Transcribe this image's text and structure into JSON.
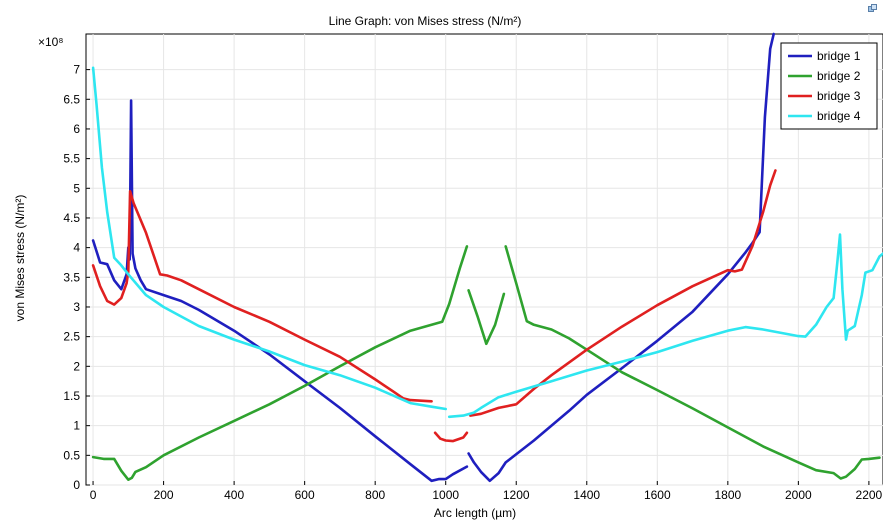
{
  "chart_data": {
    "type": "line",
    "title": "Line Graph: von Mises stress (N/m²)",
    "xlabel": "Arc length (µm)",
    "ylabel": "von Mises stress (N/m²)",
    "y_multiplier": "×10⁸",
    "xlim": [
      -20,
      2240
    ],
    "ylim": [
      0,
      7.6
    ],
    "x_ticks": [
      0,
      200,
      400,
      600,
      800,
      1000,
      1200,
      1400,
      1600,
      1800,
      2000,
      2200
    ],
    "y_ticks": [
      0,
      0.5,
      1,
      1.5,
      2,
      2.5,
      3,
      3.5,
      4,
      4.5,
      5,
      5.5,
      6,
      6.5,
      7
    ],
    "x_tick_labels": [
      "0",
      "200",
      "400",
      "600",
      "800",
      "1000",
      "1200",
      "1400",
      "1600",
      "1800",
      "2000",
      "2200"
    ],
    "y_tick_labels": [
      "0",
      "0.5",
      "1",
      "1.5",
      "2",
      "2.5",
      "3",
      "3.5",
      "4",
      "4.5",
      "5",
      "5.5",
      "6",
      "6.5",
      "7"
    ],
    "legend_position": "top-right",
    "grid": true,
    "series": [
      {
        "name": "bridge 1",
        "color": "#1f1fbf",
        "segments": [
          [
            [
              0,
              4.12
            ],
            [
              20,
              3.75
            ],
            [
              40,
              3.72
            ],
            [
              60,
              3.45
            ],
            [
              80,
              3.3
            ],
            [
              95,
              3.55
            ],
            [
              100,
              4.0
            ],
            [
              104,
              3.8
            ],
            [
              108,
              6.48
            ],
            [
              112,
              3.9
            ],
            [
              120,
              3.65
            ],
            [
              135,
              3.45
            ],
            [
              150,
              3.3
            ],
            [
              200,
              3.2
            ],
            [
              250,
              3.1
            ],
            [
              300,
              2.95
            ],
            [
              400,
              2.6
            ],
            [
              500,
              2.2
            ],
            [
              600,
              1.75
            ],
            [
              700,
              1.3
            ],
            [
              800,
              0.82
            ],
            [
              900,
              0.35
            ],
            [
              960,
              0.07
            ],
            [
              980,
              0.1
            ],
            [
              1000,
              0.1
            ],
            [
              1020,
              0.18
            ],
            [
              1060,
              0.31
            ]
          ],
          [
            [
              1065,
              0.53
            ],
            [
              1080,
              0.38
            ],
            [
              1100,
              0.22
            ],
            [
              1125,
              0.07
            ],
            [
              1150,
              0.2
            ],
            [
              1170,
              0.38
            ],
            [
              1250,
              0.75
            ],
            [
              1350,
              1.25
            ],
            [
              1400,
              1.52
            ],
            [
              1500,
              1.97
            ],
            [
              1600,
              2.43
            ],
            [
              1700,
              2.92
            ],
            [
              1800,
              3.55
            ],
            [
              1850,
              3.92
            ],
            [
              1870,
              4.08
            ],
            [
              1890,
              4.26
            ],
            [
              1905,
              6.2
            ],
            [
              1920,
              7.35
            ],
            [
              1930,
              7.6
            ]
          ]
        ]
      },
      {
        "name": "bridge 2",
        "color": "#2fa22f",
        "segments": [
          [
            [
              0,
              0.47
            ],
            [
              30,
              0.44
            ],
            [
              60,
              0.44
            ],
            [
              80,
              0.24
            ],
            [
              100,
              0.09
            ],
            [
              110,
              0.12
            ],
            [
              120,
              0.22
            ],
            [
              150,
              0.3
            ],
            [
              200,
              0.5
            ],
            [
              300,
              0.8
            ],
            [
              400,
              1.08
            ],
            [
              500,
              1.36
            ],
            [
              600,
              1.67
            ],
            [
              700,
              2.0
            ],
            [
              800,
              2.32
            ],
            [
              900,
              2.6
            ],
            [
              960,
              2.7
            ],
            [
              990,
              2.75
            ],
            [
              1010,
              3.05
            ],
            [
              1040,
              3.65
            ],
            [
              1060,
              4.02
            ]
          ],
          [
            [
              1065,
              3.28
            ],
            [
              1090,
              2.85
            ],
            [
              1115,
              2.38
            ],
            [
              1140,
              2.7
            ],
            [
              1165,
              3.22
            ]
          ],
          [
            [
              1170,
              4.02
            ],
            [
              1200,
              3.4
            ],
            [
              1230,
              2.76
            ],
            [
              1250,
              2.7
            ],
            [
              1300,
              2.62
            ],
            [
              1350,
              2.47
            ],
            [
              1400,
              2.28
            ],
            [
              1500,
              1.9
            ],
            [
              1600,
              1.6
            ],
            [
              1700,
              1.29
            ],
            [
              1800,
              0.97
            ],
            [
              1900,
              0.65
            ],
            [
              2000,
              0.38
            ],
            [
              2050,
              0.25
            ],
            [
              2100,
              0.2
            ],
            [
              2120,
              0.11
            ],
            [
              2135,
              0.14
            ],
            [
              2160,
              0.27
            ],
            [
              2180,
              0.43
            ],
            [
              2200,
              0.44
            ],
            [
              2230,
              0.46
            ]
          ]
        ]
      },
      {
        "name": "bridge 3",
        "color": "#e02020",
        "segments": [
          [
            [
              0,
              3.7
            ],
            [
              20,
              3.35
            ],
            [
              40,
              3.1
            ],
            [
              60,
              3.04
            ],
            [
              80,
              3.15
            ],
            [
              95,
              3.4
            ],
            [
              100,
              3.6
            ],
            [
              105,
              4.95
            ],
            [
              115,
              4.75
            ],
            [
              150,
              4.25
            ],
            [
              190,
              3.55
            ],
            [
              210,
              3.53
            ],
            [
              250,
              3.45
            ],
            [
              300,
              3.3
            ],
            [
              400,
              3.0
            ],
            [
              500,
              2.75
            ],
            [
              600,
              2.45
            ],
            [
              700,
              2.16
            ],
            [
              800,
              1.78
            ],
            [
              850,
              1.58
            ],
            [
              880,
              1.46
            ],
            [
              900,
              1.43
            ],
            [
              960,
              1.41
            ]
          ],
          [
            [
              970,
              0.88
            ],
            [
              985,
              0.78
            ],
            [
              1000,
              0.75
            ],
            [
              1020,
              0.74
            ],
            [
              1050,
              0.8
            ],
            [
              1060,
              0.88
            ]
          ],
          [
            [
              1070,
              1.17
            ],
            [
              1100,
              1.2
            ],
            [
              1150,
              1.3
            ],
            [
              1200,
              1.36
            ],
            [
              1250,
              1.62
            ],
            [
              1300,
              1.85
            ],
            [
              1400,
              2.28
            ],
            [
              1500,
              2.67
            ],
            [
              1600,
              3.03
            ],
            [
              1700,
              3.35
            ],
            [
              1800,
              3.62
            ],
            [
              1820,
              3.6
            ],
            [
              1840,
              3.63
            ],
            [
              1870,
              4.03
            ],
            [
              1900,
              4.6
            ],
            [
              1920,
              5.05
            ],
            [
              1935,
              5.3
            ]
          ]
        ]
      },
      {
        "name": "bridge 4",
        "color": "#2ee6f0",
        "segments": [
          [
            [
              0,
              7.03
            ],
            [
              10,
              6.4
            ],
            [
              25,
              5.35
            ],
            [
              40,
              4.6
            ],
            [
              60,
              3.83
            ],
            [
              80,
              3.7
            ],
            [
              100,
              3.55
            ],
            [
              150,
              3.2
            ],
            [
              200,
              3.0
            ],
            [
              300,
              2.68
            ],
            [
              400,
              2.45
            ],
            [
              500,
              2.25
            ],
            [
              600,
              2.02
            ],
            [
              700,
              1.85
            ],
            [
              800,
              1.64
            ],
            [
              900,
              1.38
            ],
            [
              960,
              1.32
            ],
            [
              1000,
              1.28
            ]
          ],
          [
            [
              1010,
              1.15
            ],
            [
              1050,
              1.17
            ],
            [
              1080,
              1.22
            ],
            [
              1100,
              1.3
            ],
            [
              1150,
              1.48
            ],
            [
              1200,
              1.57
            ],
            [
              1300,
              1.75
            ],
            [
              1400,
              1.93
            ],
            [
              1500,
              2.08
            ],
            [
              1600,
              2.24
            ],
            [
              1700,
              2.43
            ],
            [
              1800,
              2.6
            ],
            [
              1850,
              2.66
            ],
            [
              1900,
              2.62
            ],
            [
              2000,
              2.51
            ],
            [
              2020,
              2.5
            ],
            [
              2050,
              2.7
            ],
            [
              2080,
              3.0
            ],
            [
              2100,
              3.15
            ],
            [
              2110,
              3.73
            ],
            [
              2118,
              4.22
            ],
            [
              2125,
              3.3
            ],
            [
              2135,
              2.45
            ],
            [
              2140,
              2.6
            ],
            [
              2160,
              2.68
            ],
            [
              2180,
              3.2
            ],
            [
              2190,
              3.58
            ],
            [
              2210,
              3.62
            ],
            [
              2230,
              3.85
            ],
            [
              2240,
              3.9
            ]
          ]
        ]
      }
    ]
  }
}
